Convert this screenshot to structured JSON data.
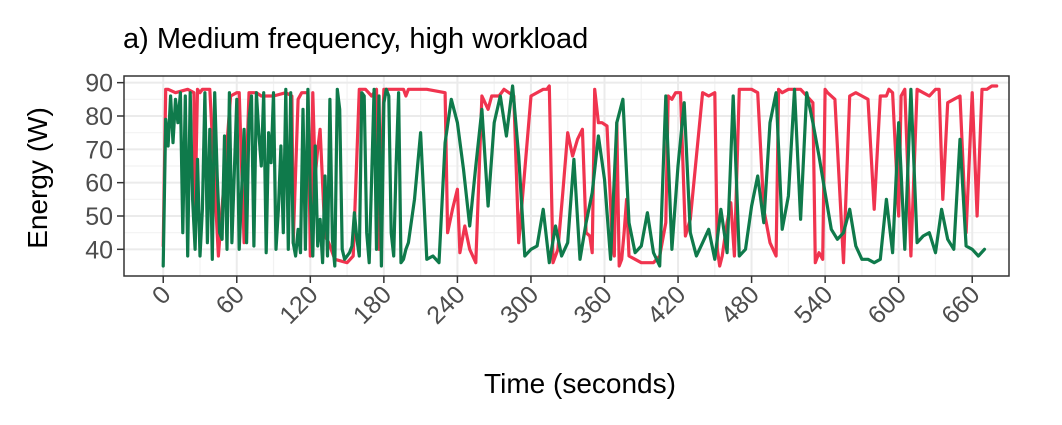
{
  "chart_data": {
    "type": "line",
    "title": "a) Medium frequency, high workload",
    "xlabel": "Time (seconds)",
    "ylabel": "Energy (W)",
    "xlim": [
      -32,
      690
    ],
    "ylim": [
      32,
      92
    ],
    "xticks": [
      0,
      60,
      120,
      180,
      240,
      300,
      360,
      420,
      480,
      540,
      600,
      660
    ],
    "xtick_labels": [
      "0",
      "60",
      "120",
      "180",
      "240",
      "300",
      "360",
      "420",
      "480",
      "540",
      "600",
      "660"
    ],
    "yticks": [
      40,
      50,
      60,
      70,
      80,
      90
    ],
    "ytick_labels": [
      "40",
      "50",
      "60",
      "70",
      "80",
      "90"
    ],
    "grid": true,
    "legend": "none",
    "colors": {
      "series_red": "#f0344f",
      "series_green": "#0f7a4b"
    },
    "series": [
      {
        "color": "#f0344f",
        "x": [
          0,
          2,
          4,
          10,
          20,
          25,
          26,
          28,
          30,
          32,
          34,
          38,
          45,
          55,
          60,
          62,
          66,
          70,
          76,
          80,
          90,
          100,
          105,
          106,
          110,
          113,
          118,
          120,
          122,
          124,
          126,
          128,
          132,
          135,
          140,
          150,
          155,
          160,
          165,
          170,
          174,
          176,
          180,
          182,
          186,
          190,
          196,
          198,
          200,
          215,
          230,
          232,
          236,
          240,
          242,
          246,
          250,
          255,
          260,
          265,
          268,
          270,
          274,
          278,
          282,
          286,
          290,
          300,
          310,
          313,
          315,
          318,
          322,
          326,
          330,
          334,
          338,
          342,
          345,
          348,
          350,
          352,
          355,
          358,
          362,
          366,
          368,
          370,
          372,
          374,
          376,
          378,
          380,
          385,
          390,
          400,
          405,
          410,
          412,
          415,
          418,
          422,
          426,
          430,
          440,
          445,
          450,
          452,
          454,
          456,
          458,
          460,
          463,
          466,
          470,
          480,
          485,
          490,
          495,
          500,
          502,
          505,
          510,
          520,
          530,
          532,
          535,
          538,
          540,
          542,
          548,
          555,
          560,
          565,
          570,
          575,
          580,
          585,
          590,
          592,
          595,
          600,
          602,
          605,
          610,
          615,
          620,
          625,
          630,
          633,
          636,
          640,
          645,
          650,
          655,
          660,
          664,
          668,
          672,
          676,
          680
        ],
        "y": [
          41,
          88,
          88,
          87,
          88,
          87,
          52,
          88,
          87,
          88,
          88,
          88,
          38,
          86,
          87,
          87,
          42,
          87,
          87,
          86,
          86,
          87,
          86,
          42,
          85,
          87,
          87,
          38,
          87,
          62,
          70,
          76,
          44,
          42,
          37,
          36,
          38,
          88,
          88,
          86,
          88,
          40,
          88,
          88,
          88,
          88,
          88,
          86,
          88,
          88,
          87,
          45,
          52,
          58,
          39,
          47,
          40,
          36,
          86,
          82,
          86,
          86,
          86,
          88,
          87,
          86,
          42,
          86,
          88,
          88,
          89,
          36,
          40,
          57,
          75,
          68,
          73,
          76,
          45,
          44,
          39,
          88,
          78,
          78,
          77,
          45,
          38,
          78,
          35,
          37,
          45,
          55,
          38,
          37,
          36,
          36,
          38,
          48,
          86,
          85,
          87,
          87,
          44,
          49,
          87,
          86,
          87,
          40,
          35,
          38,
          43,
          48,
          54,
          38,
          88,
          88,
          87,
          52,
          42,
          38,
          88,
          87,
          88,
          88,
          84,
          36,
          39,
          37,
          88,
          87,
          85,
          36,
          86,
          87,
          86,
          85,
          52,
          86,
          86,
          88,
          87,
          50,
          86,
          88,
          38,
          88,
          87,
          86,
          88,
          88,
          55,
          84,
          85,
          86,
          45,
          87,
          50,
          88,
          88,
          89,
          89
        ]
      },
      {
        "color": "#0f7a4b",
        "x": [
          0,
          2,
          4,
          6,
          8,
          10,
          12,
          14,
          16,
          18,
          20,
          22,
          24,
          26,
          28,
          30,
          32,
          34,
          36,
          38,
          40,
          42,
          44,
          46,
          48,
          50,
          52,
          54,
          56,
          58,
          60,
          62,
          64,
          66,
          68,
          70,
          72,
          74,
          76,
          78,
          80,
          82,
          84,
          86,
          88,
          90,
          92,
          94,
          96,
          98,
          100,
          102,
          104,
          106,
          108,
          110,
          112,
          114,
          116,
          118,
          120,
          122,
          124,
          126,
          128,
          130,
          132,
          134,
          136,
          138,
          140,
          142,
          144,
          146,
          148,
          150,
          152,
          154,
          156,
          158,
          160,
          162,
          164,
          166,
          168,
          170,
          172,
          174,
          176,
          178,
          180,
          182,
          184,
          186,
          188,
          190,
          192,
          194,
          196,
          198,
          200,
          205,
          210,
          215,
          220,
          225,
          230,
          235,
          240,
          245,
          250,
          255,
          260,
          265,
          270,
          275,
          280,
          285,
          290,
          295,
          300,
          305,
          310,
          315,
          320,
          325,
          330,
          335,
          340,
          345,
          350,
          355,
          360,
          365,
          370,
          375,
          380,
          385,
          390,
          395,
          400,
          405,
          410,
          415,
          420,
          425,
          430,
          435,
          440,
          445,
          450,
          455,
          460,
          465,
          470,
          475,
          480,
          485,
          490,
          495,
          500,
          505,
          510,
          515,
          520,
          525,
          530,
          535,
          540,
          545,
          550,
          555,
          560,
          565,
          570,
          575,
          580,
          585,
          590,
          595,
          600,
          605,
          610,
          615,
          620,
          625,
          630,
          635,
          640,
          645,
          650,
          655,
          660,
          665,
          670
        ],
        "y": [
          35,
          79,
          71,
          86,
          72,
          85,
          78,
          87,
          45,
          86,
          38,
          87,
          55,
          40,
          67,
          38,
          52,
          87,
          42,
          76,
          37,
          87,
          62,
          45,
          43,
          74,
          40,
          87,
          42,
          63,
          85,
          40,
          58,
          76,
          42,
          79,
          86,
          41,
          87,
          75,
          65,
          87,
          39,
          75,
          66,
          87,
          40,
          52,
          71,
          45,
          88,
          40,
          87,
          42,
          38,
          46,
          39,
          82,
          40,
          88,
          56,
          38,
          71,
          41,
          49,
          36,
          62,
          38,
          85,
          43,
          35,
          88,
          82,
          40,
          37,
          38,
          39,
          41,
          51,
          43,
          38,
          87,
          86,
          45,
          36,
          61,
          88,
          40,
          86,
          35,
          84,
          88,
          86,
          45,
          38,
          65,
          87,
          36,
          37,
          40,
          42,
          55,
          75,
          37,
          38,
          36,
          72,
          85,
          78,
          64,
          47,
          65,
          82,
          53,
          78,
          86,
          74,
          89,
          68,
          38,
          40,
          41,
          52,
          36,
          47,
          38,
          42,
          67,
          37,
          48,
          57,
          74,
          61,
          37,
          78,
          85,
          48,
          39,
          41,
          51,
          39,
          35,
          86,
          40,
          65,
          84,
          45,
          38,
          42,
          46,
          37,
          52,
          39,
          86,
          38,
          40,
          53,
          62,
          48,
          78,
          87,
          46,
          56,
          88,
          49,
          87,
          78,
          68,
          57,
          46,
          43,
          45,
          52,
          41,
          37,
          37,
          36,
          37,
          55,
          39,
          78,
          40,
          88,
          42,
          44,
          45,
          39,
          52,
          43,
          40,
          73,
          41,
          40,
          38,
          40
        ]
      }
    ]
  }
}
